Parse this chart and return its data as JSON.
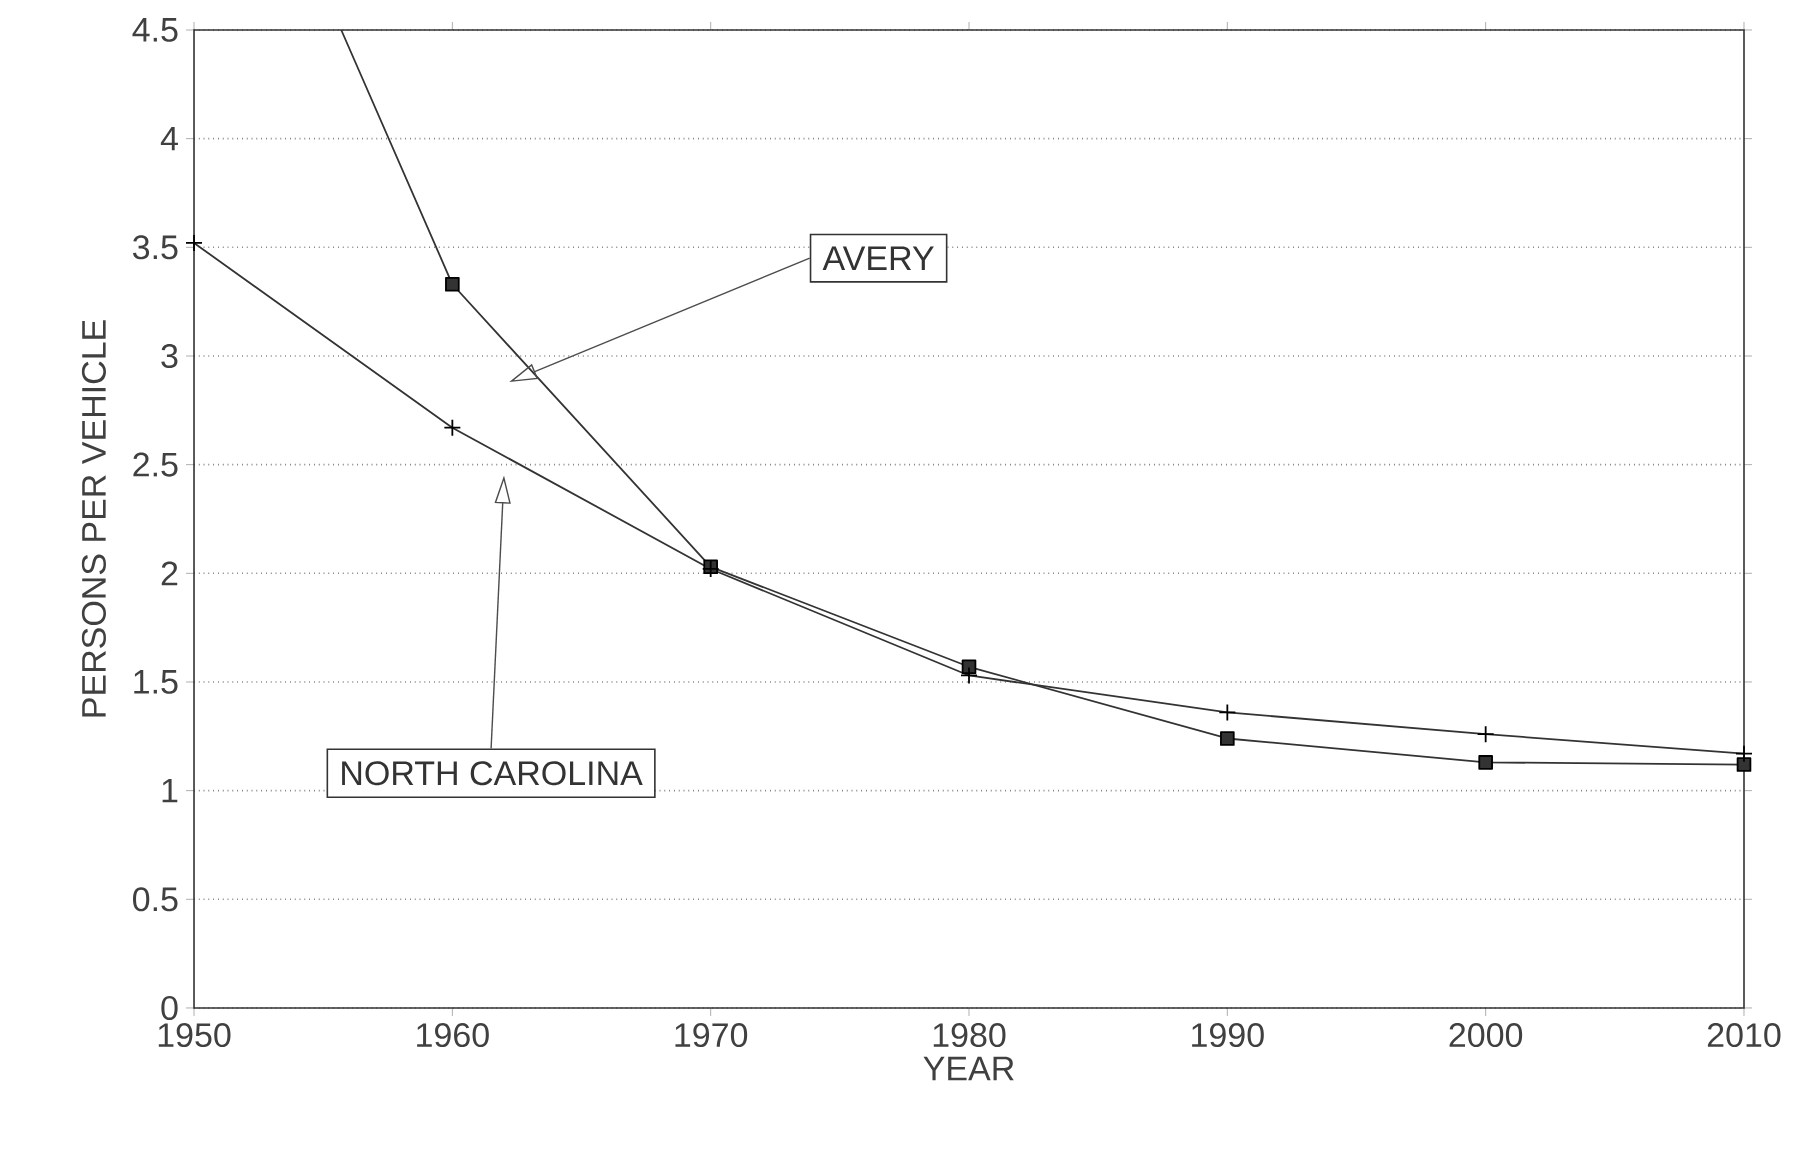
{
  "chart_data": {
    "type": "line",
    "xlabel": "YEAR",
    "ylabel": "PERSONS PER VEHICLE",
    "xlim": [
      1950,
      2010
    ],
    "xticks": [
      1950,
      1960,
      1970,
      1980,
      1990,
      2000,
      2010
    ],
    "ylim": [
      0,
      4.5
    ],
    "yticks": [
      0,
      0.5,
      1,
      1.5,
      2,
      2.5,
      3,
      3.5,
      4,
      4.5
    ],
    "grid": "y",
    "series": [
      {
        "name": "AVERY",
        "color": "#333333",
        "marker": "square",
        "x": [
          1955.7,
          1960,
          1970,
          1980,
          1990,
          2000,
          2010
        ],
        "values": [
          4.5,
          3.33,
          2.03,
          1.57,
          1.24,
          1.13,
          1.12
        ]
      },
      {
        "name": "NORTH CAROLINA",
        "color": "#333333",
        "marker": "cross",
        "x": [
          1950,
          1960,
          1970,
          1980,
          1990,
          2000,
          2010
        ],
        "values": [
          3.52,
          2.67,
          2.02,
          1.53,
          1.36,
          1.26,
          1.17
        ]
      }
    ]
  }
}
